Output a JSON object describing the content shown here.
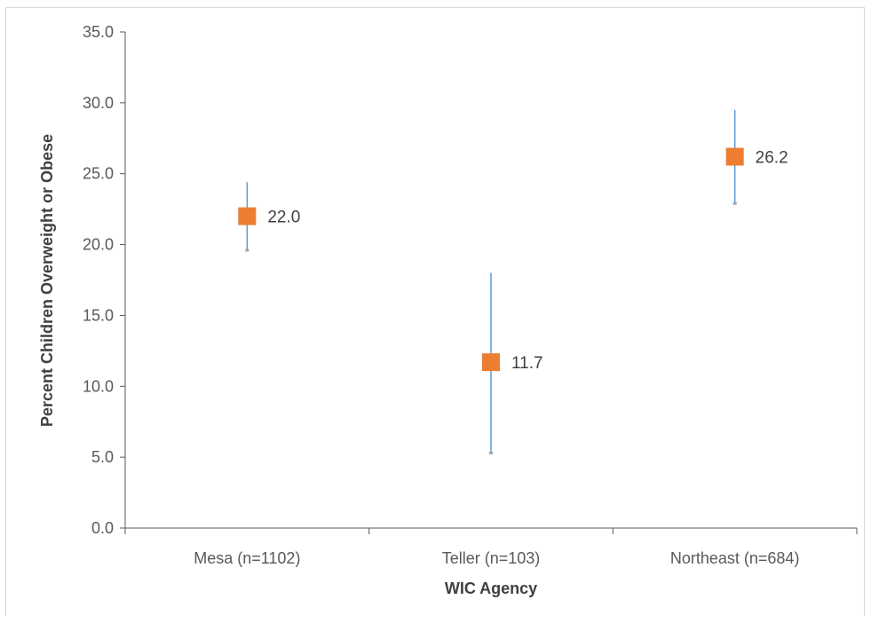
{
  "chart_data": {
    "type": "scatter",
    "title": "",
    "xlabel": "WIC Agency",
    "ylabel": "Percent Children Overweight or Obese",
    "ylim": [
      0,
      35
    ],
    "ytick_step": 5,
    "ytick_decimals": 1,
    "grid": false,
    "legend": "none",
    "categories": [
      "Mesa (n=1102)",
      "Teller (n=103)",
      "Northeast (n=684)"
    ],
    "values": [
      22.0,
      11.7,
      26.2
    ],
    "data_labels": [
      "22.0",
      "11.7",
      "26.2"
    ],
    "error_low": [
      19.6,
      5.3,
      22.9
    ],
    "error_high": [
      24.4,
      18.0,
      29.5
    ],
    "colors": {
      "marker": "#ed7d31",
      "error_bar": "#5b9bd5",
      "error_cap": "#a5a5a5",
      "axis": "#595959"
    }
  }
}
